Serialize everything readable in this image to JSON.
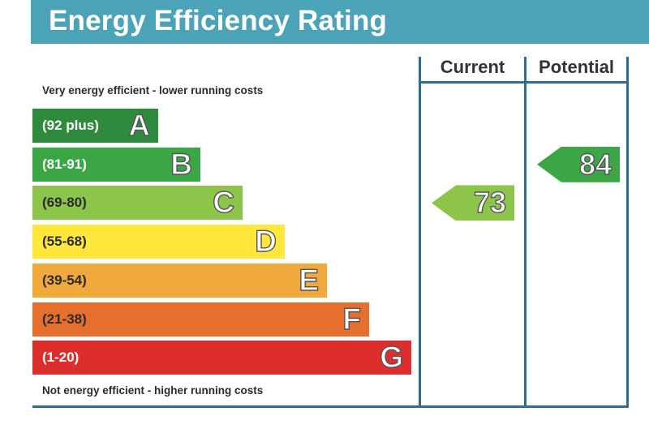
{
  "title": "Energy Efficiency Rating",
  "columns": {
    "current": "Current",
    "potential": "Potential"
  },
  "top_caption": "Very energy efficient - lower running costs",
  "bottom_caption": "Not energy efficient - higher running costs",
  "colors": {
    "header": "#4aa3b6",
    "frame": "#2f6f8e"
  },
  "chart_data": {
    "type": "bar",
    "title": "Energy Efficiency Rating",
    "categories": [
      "A",
      "B",
      "C",
      "D",
      "E",
      "F",
      "G"
    ],
    "bands": [
      {
        "letter": "A",
        "range": "(92 plus)",
        "color": "#2e8b3e",
        "text_color": "#ffffff"
      },
      {
        "letter": "B",
        "range": "(81-91)",
        "color": "#3aa645",
        "text_color": "#ffffff"
      },
      {
        "letter": "C",
        "range": "(69-80)",
        "color": "#8cc54a",
        "text_color": "#2b2b2b"
      },
      {
        "letter": "D",
        "range": "(55-68)",
        "color": "#ffe73b",
        "text_color": "#2b2b2b"
      },
      {
        "letter": "E",
        "range": "(39-54)",
        "color": "#f2a93b",
        "text_color": "#2b2b2b"
      },
      {
        "letter": "F",
        "range": "(21-38)",
        "color": "#e76f2e",
        "text_color": "#2b2b2b"
      },
      {
        "letter": "G",
        "range": "(1-20)",
        "color": "#dd2e2e",
        "text_color": "#ffffff"
      }
    ],
    "current": {
      "value": 73,
      "band": "C",
      "color": "#8cc54a"
    },
    "potential": {
      "value": 84,
      "band": "B",
      "color": "#3aa645"
    }
  }
}
